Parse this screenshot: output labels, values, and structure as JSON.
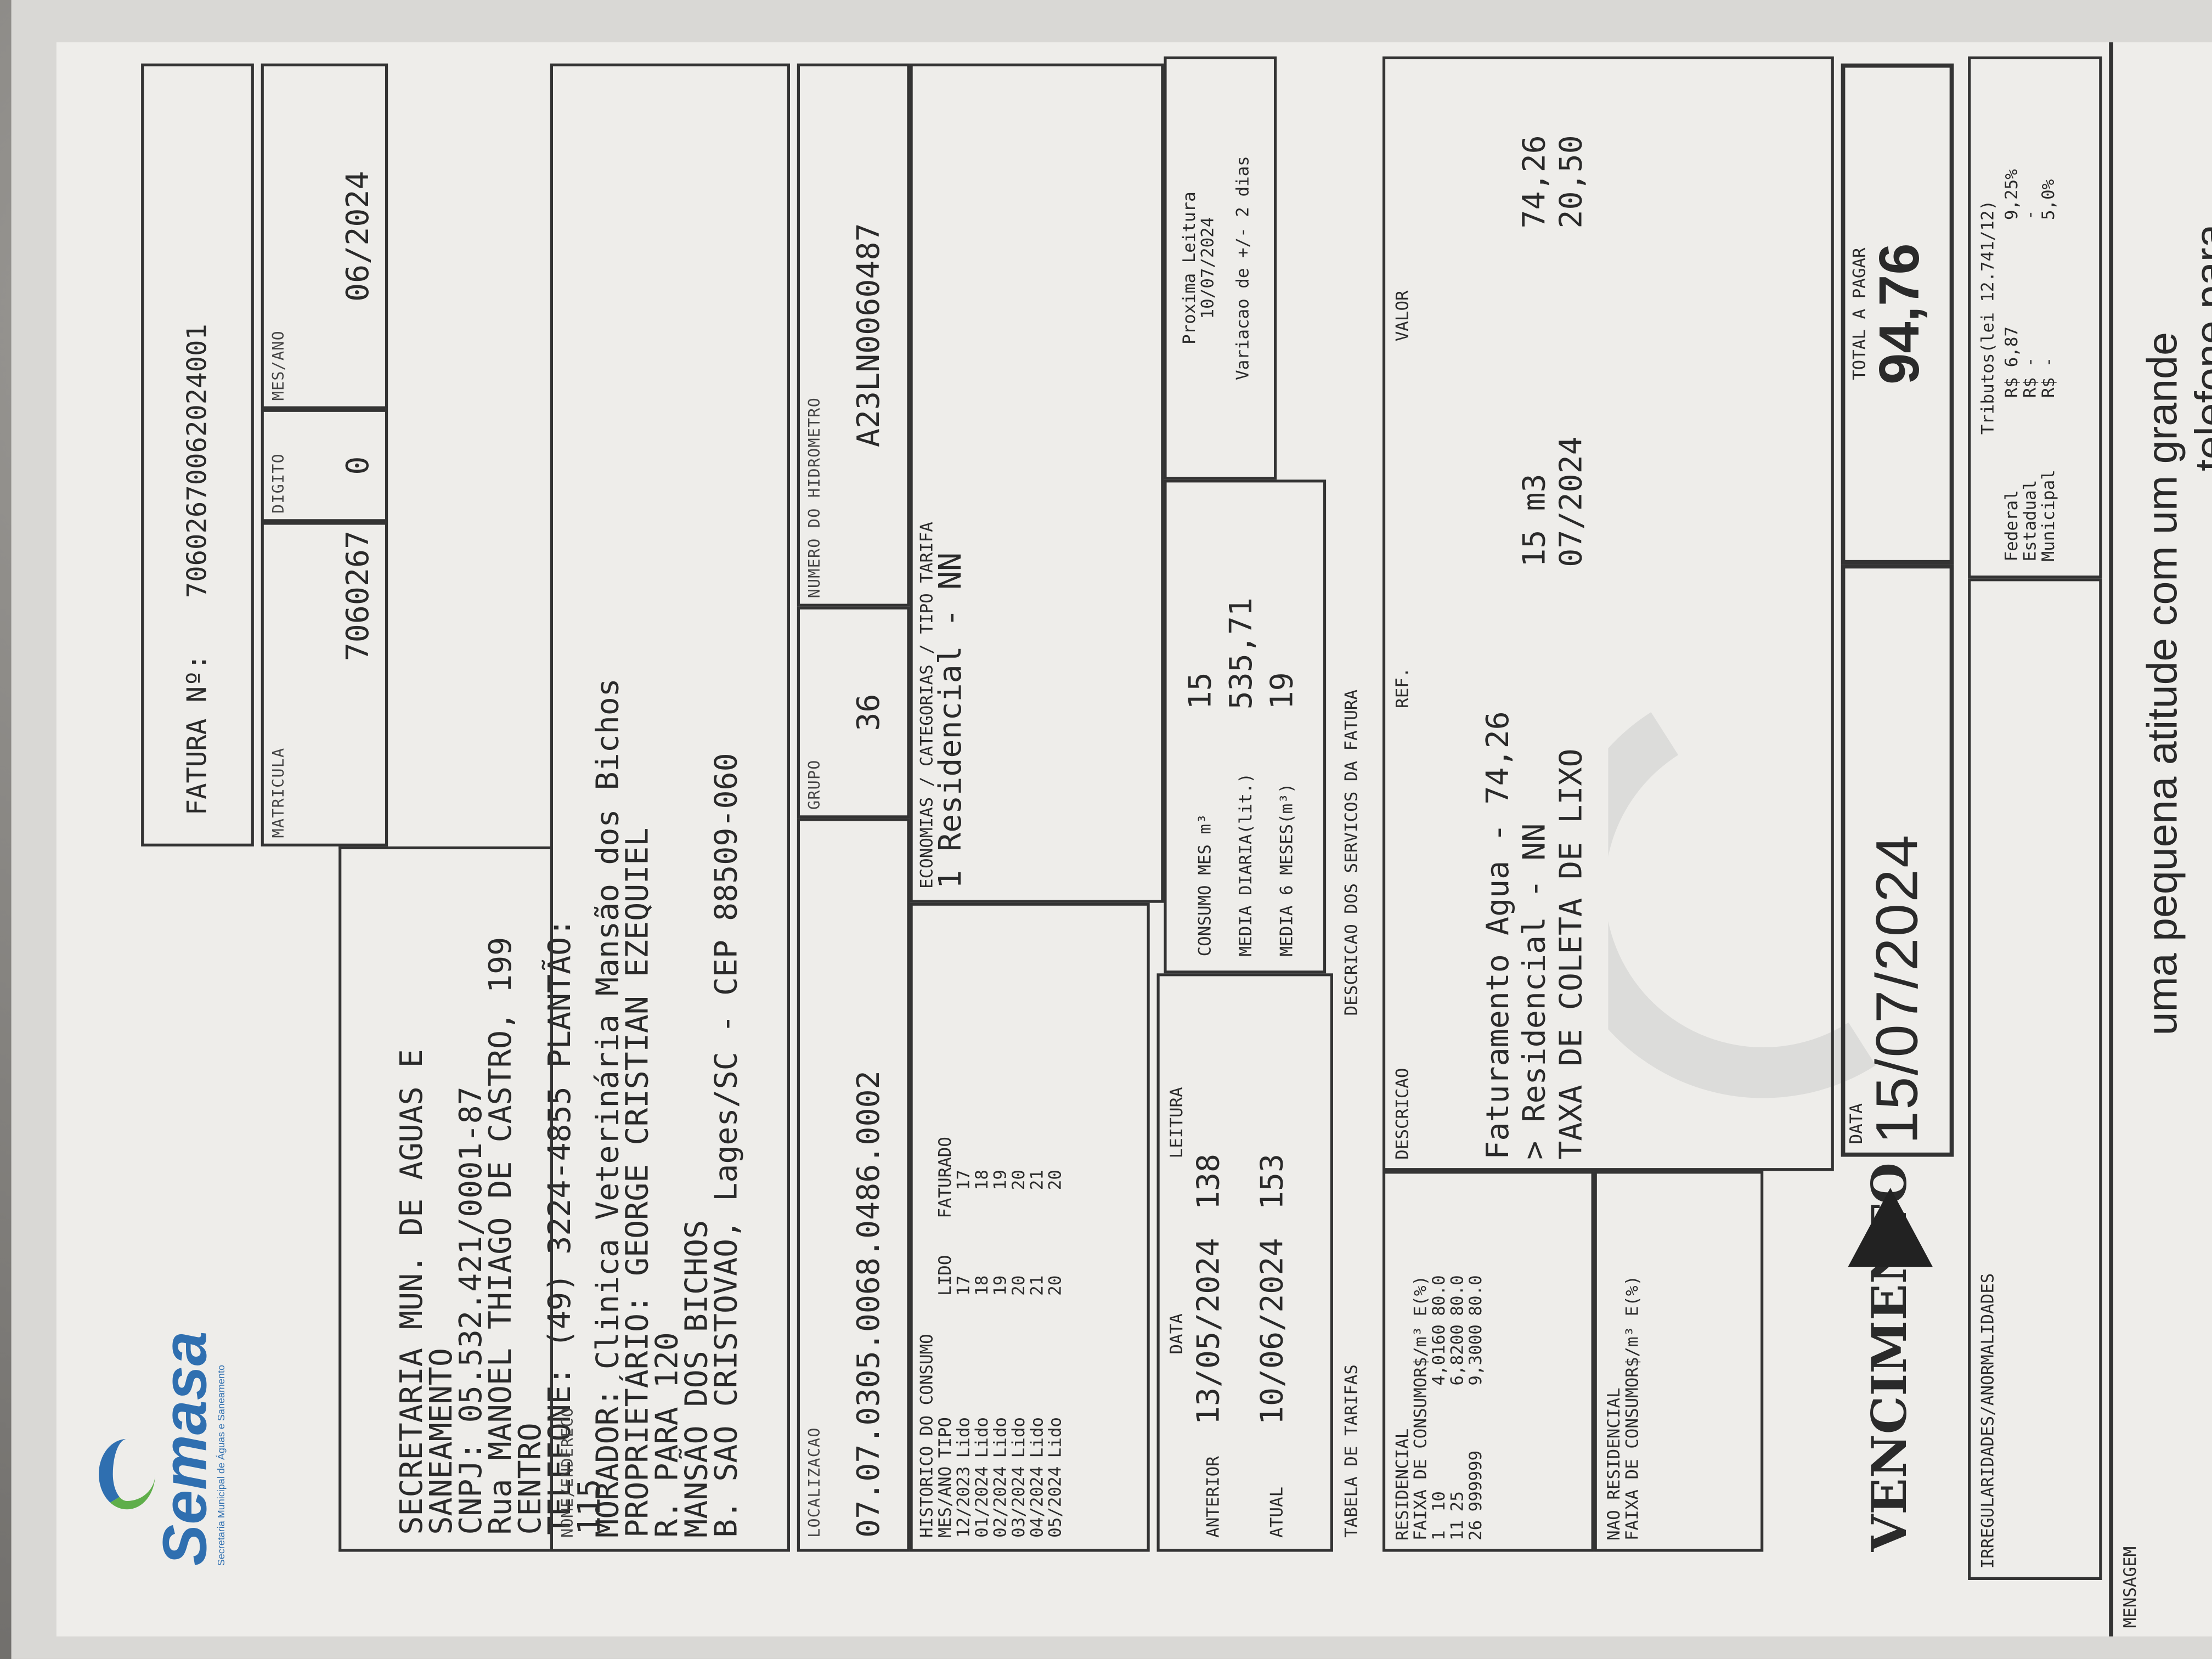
{
  "company": {
    "logo": "Semasa",
    "logo_sub": "Secretaria Municipal de Águas e Saneamento",
    "lines": [
      "SECRETARIA MUN. DE AGUAS E SANEAMENTO",
      "CNPJ: 05.532.421/0001-87",
      "Rua  MANOEL THIAGO DE CASTRO, 199 CENTRO",
      "TELEFONE: (49) 3224-4855     PLANTÃO: 115"
    ]
  },
  "invoice": {
    "label": "FATURA Nº:",
    "number": "70602670062024001"
  },
  "matricula": {
    "label": "MATRICULA",
    "value": "7060267"
  },
  "digito": {
    "label": "DIGITO",
    "value": "0"
  },
  "mes_ano": {
    "label": "MES/ANO",
    "value": "06/2024"
  },
  "address": {
    "label": "NOME/ENDERECO",
    "lines": [
      "MORADOR: Clinica Veterinária Mansão dos Bichos",
      "PROPRIETÁRIO: GEORGE CRISTIAN EZEQUIEL",
      "R. PARA 120",
      "MANSÃO DOS BICHOS",
      "B. SAO CRISTOVAO, Lages/SC - CEP 88509-060"
    ]
  },
  "localizacao": {
    "label": "LOCALIZACAO",
    "value": "07.07.0305.0068.0486.0002"
  },
  "grupo": {
    "label": "GRUPO",
    "value": "36"
  },
  "hidrometro": {
    "label": "NUMERO DO HIDROMETRO",
    "value": "A23LN0060487"
  },
  "historico": {
    "title": "HISTORICO DO CONSUMO",
    "headers": [
      "MES/ANO",
      "TIPO",
      "LIDO",
      "FATURADO"
    ],
    "rows": [
      [
        "12/2023",
        "Lido",
        "17",
        "17"
      ],
      [
        "01/2024",
        "Lido",
        "18",
        "18"
      ],
      [
        "02/2024",
        "Lido",
        "19",
        "19"
      ],
      [
        "03/2024",
        "Lido",
        "20",
        "20"
      ],
      [
        "04/2024",
        "Lido",
        "21",
        "21"
      ],
      [
        "05/2024",
        "Lido",
        "20",
        "20"
      ]
    ]
  },
  "economias": {
    "label": "ECONOMIAS / CATEGORIAS / TIPO TARIFA",
    "value": "1 Residencial - NN"
  },
  "leituras": {
    "data_label": "DATA",
    "leitura_label": "LEITURA",
    "rows": [
      {
        "label": "ANTERIOR",
        "date": "13/05/2024",
        "value": "138"
      },
      {
        "label": "ATUAL",
        "date": "10/06/2024",
        "value": "153"
      }
    ]
  },
  "consumo": {
    "rows": [
      {
        "label": "CONSUMO MES m³",
        "value": "15"
      },
      {
        "label": "MEDIA DIARIA(lit.)",
        "value": "535,71"
      },
      {
        "label": "MEDIA 6 MESES(m³)",
        "value": "19"
      }
    ]
  },
  "proxima": {
    "label": "Proxima Leitura",
    "date": "10/07/2024",
    "note": "Variacao de +/- 2 dias"
  },
  "tarifas": {
    "title": "TABELA DE TARIFAS",
    "residencial": {
      "label": "RESIDENCIAL",
      "header": "FAIXA DE CONSUMOR$/m³ E(%)",
      "rows": [
        [
          "1",
          "10",
          "4,0160",
          "80.0"
        ],
        [
          "11",
          "25",
          "6,8200",
          "80.0"
        ],
        [
          "26",
          "999999",
          "9,3000",
          "80.0"
        ]
      ]
    },
    "nao_residencial": {
      "label": "NAO RESIDENCIAL",
      "header": "FAIXA DE CONSUMOR$/m³ E(%)"
    }
  },
  "servicos": {
    "title": "DESCRICAO DOS SERVICOS DA FATURA",
    "headers": [
      "DESCRICAO",
      "REF.",
      "VALOR"
    ],
    "rows": [
      {
        "desc": "Faturamento Agua - 74,26",
        "ref": "",
        "valor": ""
      },
      {
        "desc": "> Residencial - NN",
        "ref": "15 m3",
        "valor": "74,26"
      },
      {
        "desc": "TAXA DE COLETA DE LIXO",
        "ref": "07/2024",
        "valor": "20,50"
      }
    ]
  },
  "vencimento": {
    "label": "VENCIMENTO",
    "data_label": "DATA",
    "date": "15/07/2024"
  },
  "total": {
    "label": "TOTAL A PAGAR",
    "value": "94,76"
  },
  "irregularidades": {
    "label": "IRREGULARIDADES/ANORMALIDADES"
  },
  "tributos": {
    "title": "Tributos(lei 12.741/12)",
    "rows": [
      [
        "Federal",
        "R$ 6,87",
        "9,25%"
      ],
      [
        "Estadual",
        "R$ -",
        "-"
      ],
      [
        "Municipal",
        "R$ -",
        "5,0%"
      ]
    ]
  },
  "mensagem": {
    "label": "MENSAGEM",
    "lines": [
      "uma pequena atitude com um grande",
      "telefone para"
    ]
  }
}
